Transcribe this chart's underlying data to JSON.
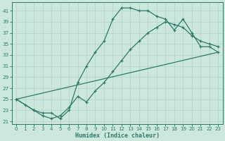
{
  "xlabel": "Humidex (Indice chaleur)",
  "ylabel": "",
  "xlim": [
    -0.5,
    23.5
  ],
  "ylim": [
    20.5,
    42.5
  ],
  "xticks": [
    0,
    1,
    2,
    3,
    4,
    5,
    6,
    7,
    8,
    9,
    10,
    11,
    12,
    13,
    14,
    15,
    16,
    17,
    18,
    19,
    20,
    21,
    22,
    23
  ],
  "yticks": [
    21,
    23,
    25,
    27,
    29,
    31,
    33,
    35,
    37,
    39,
    41
  ],
  "bg_color": "#cce8dd",
  "grid_color": "#b8d8cc",
  "line_color": "#2d7a6a",
  "curve1_x": [
    0,
    1,
    2,
    3,
    4,
    5,
    6,
    7,
    8,
    9,
    10,
    11,
    12,
    13,
    14,
    15,
    16,
    17,
    18,
    19,
    20,
    21,
    22,
    23
  ],
  "curve1_y": [
    25.0,
    24.0,
    23.0,
    22.5,
    22.5,
    21.5,
    23.0,
    28.0,
    31.0,
    33.5,
    35.5,
    39.5,
    41.5,
    41.5,
    41.0,
    41.0,
    40.0,
    39.5,
    37.5,
    39.5,
    37.0,
    34.5,
    34.5,
    33.5
  ],
  "curve2_x": [
    0,
    2,
    3,
    4,
    5,
    6,
    7,
    8,
    9,
    10,
    11,
    12,
    13,
    14,
    15,
    16,
    17,
    18,
    19,
    20,
    21,
    22,
    23
  ],
  "curve2_y": [
    25.0,
    23.0,
    22.0,
    21.5,
    22.0,
    23.5,
    25.5,
    24.5,
    26.5,
    28.0,
    30.0,
    32.0,
    34.0,
    35.5,
    37.0,
    38.0,
    39.0,
    38.5,
    38.0,
    36.5,
    35.5,
    35.0,
    34.5
  ],
  "curve3_x": [
    0,
    23
  ],
  "curve3_y": [
    25.0,
    33.5
  ]
}
